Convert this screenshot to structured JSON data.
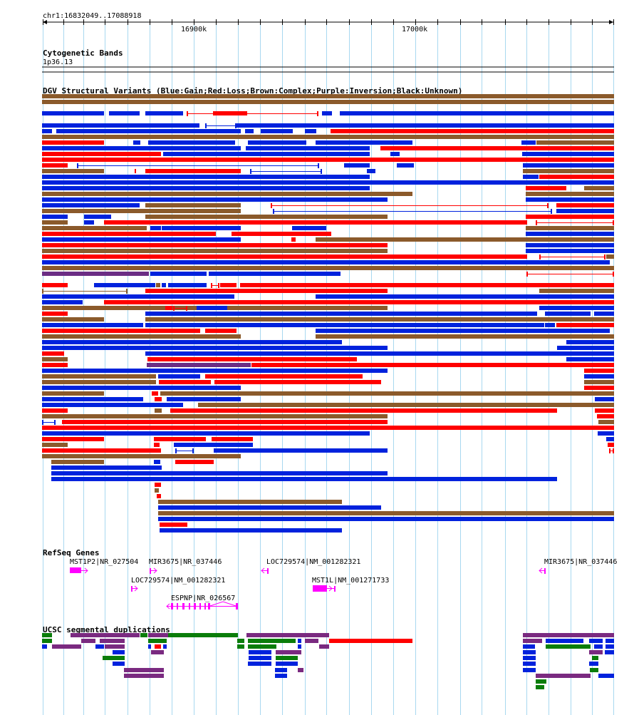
{
  "ruler": {
    "location": "chr1:16832049..17088918",
    "tick_labels": [
      "16900k",
      "17000k"
    ]
  },
  "tracks": {
    "cytogenetic_bands": {
      "title": "Cytogenetic Bands",
      "band": "1p36.13"
    },
    "dgv": {
      "title": "DGV Structural Variants (Blue:Gain;Red:Loss;Brown:Complex;Purple:Inversion;Black:Unknown)"
    },
    "refseq": {
      "title": "RefSeq Genes",
      "genes": [
        {
          "label": "MST1P2|NR_027504"
        },
        {
          "label": "MIR3675|NR_037446"
        },
        {
          "label": "LOC729574|NM_001282321"
        },
        {
          "label": "MIR3675|NR_037446"
        },
        {
          "label": "LOC729574|NM_001282321"
        },
        {
          "label": "MST1L|NM_001271733"
        },
        {
          "label": "ESPNP|NR_026567"
        }
      ]
    },
    "segdups": {
      "title": "UCSC segmental duplications"
    }
  },
  "colors": {
    "gain": "#0022dd",
    "loss": "#ff0000",
    "complex": "#8b5a2b",
    "inversion": "#6b2d84",
    "gene": "#ff00ff",
    "segdup_green": "#0a7d0a",
    "segdup_purple": "#7a2a80",
    "grid": "#a8d8f0"
  }
}
